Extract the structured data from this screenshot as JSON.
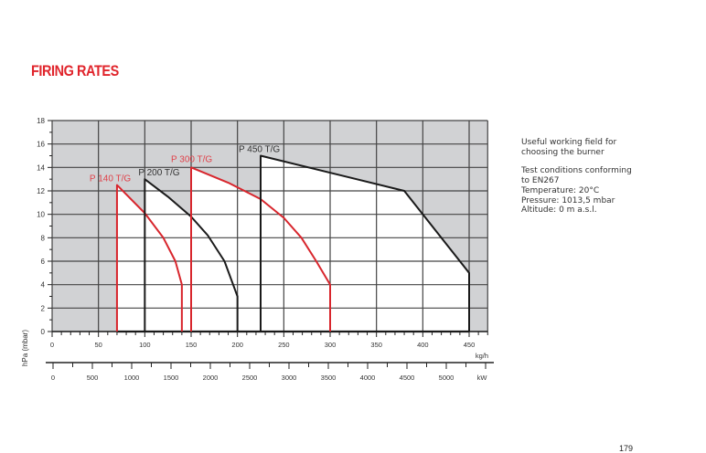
{
  "title": "FIRING RATES",
  "notes": {
    "field": "Useful working field for choosing the burner",
    "conditions": [
      "Test conditions conforming to EN267",
      "Temperature: 20°C",
      "Pressure: 1013,5 mbar",
      "Altitude: 0 m a.s.l."
    ]
  },
  "page_number": "179",
  "colors": {
    "red": "#d8262d",
    "black": "#1a1a1a",
    "shade": "#d1d2d4",
    "grid": "#444444"
  },
  "chart_data": {
    "type": "area",
    "title": "FIRING RATES",
    "ylabel": "hPa (mbar)",
    "xlabel": "kg/h",
    "x2label": "kW",
    "xlim": [
      0,
      470
    ],
    "ylim": [
      0,
      18
    ],
    "x2lim": [
      0,
      5400
    ],
    "xticks": [
      0,
      50,
      100,
      150,
      200,
      250,
      300,
      350,
      400,
      450
    ],
    "yticks": [
      0,
      2,
      4,
      6,
      8,
      10,
      12,
      14,
      16,
      18
    ],
    "x2ticks": [
      0,
      500,
      1000,
      1500,
      2000,
      2500,
      3000,
      3500,
      4000,
      4500,
      5000
    ],
    "grid": true,
    "series": [
      {
        "name": "P 140 T/G",
        "color": "red",
        "points": [
          [
            70,
            0
          ],
          [
            70,
            12.5
          ],
          [
            100,
            10.1
          ],
          [
            120,
            8
          ],
          [
            133,
            6
          ],
          [
            140,
            4
          ],
          [
            140,
            0
          ]
        ]
      },
      {
        "name": "P 200 T/G",
        "color": "black",
        "points": [
          [
            100,
            0
          ],
          [
            100,
            13
          ],
          [
            125,
            11.5
          ],
          [
            150,
            9.8
          ],
          [
            168,
            8.2
          ],
          [
            186,
            6
          ],
          [
            200,
            3
          ],
          [
            200,
            0
          ]
        ]
      },
      {
        "name": "P 300 T/G",
        "color": "red",
        "points": [
          [
            150,
            0
          ],
          [
            150,
            14
          ],
          [
            190,
            12.7
          ],
          [
            225,
            11.3
          ],
          [
            250,
            9.7
          ],
          [
            269,
            8
          ],
          [
            285,
            6
          ],
          [
            300,
            4
          ],
          [
            300,
            0
          ]
        ]
      },
      {
        "name": "P 450 T/G",
        "color": "black",
        "points": [
          [
            225,
            0
          ],
          [
            225,
            15
          ],
          [
            380,
            12
          ],
          [
            450,
            5
          ],
          [
            450,
            0
          ]
        ]
      }
    ]
  }
}
